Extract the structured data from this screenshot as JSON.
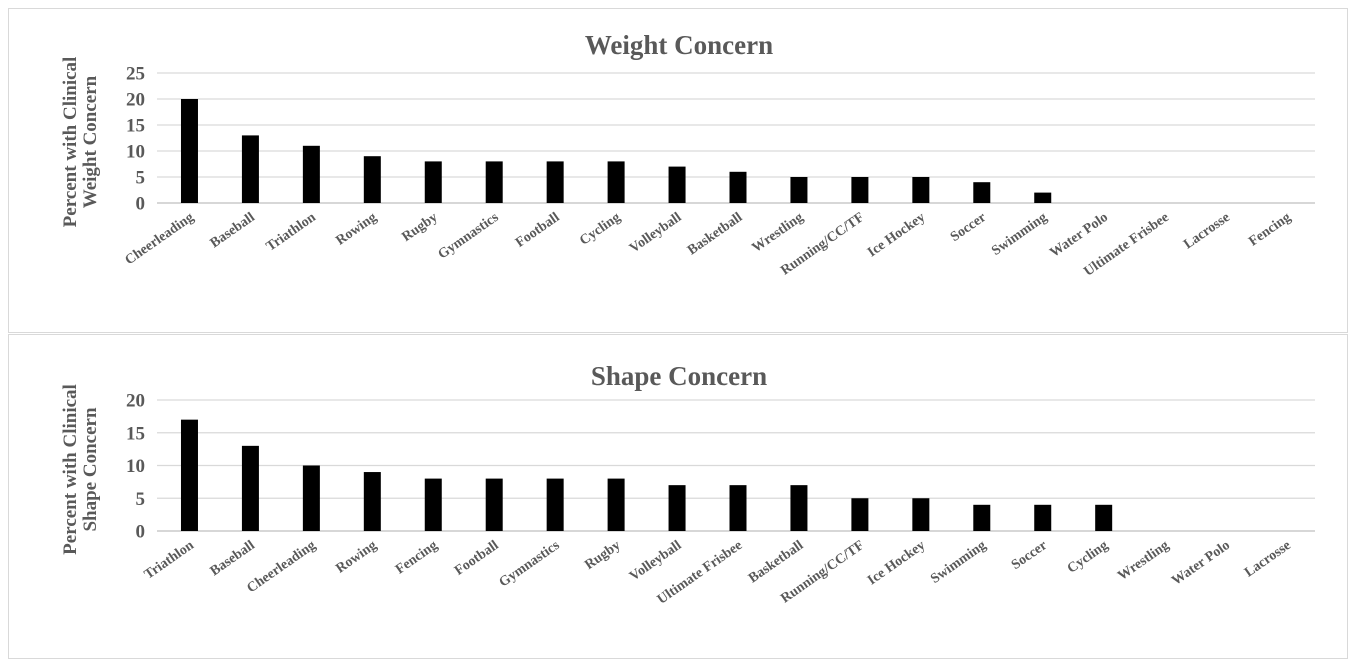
{
  "chart_data": [
    {
      "type": "bar",
      "title": "Weight Concern",
      "ylabel_lines": [
        "Percent with Clinical",
        "Weight Concern"
      ],
      "ylim": [
        0,
        25
      ],
      "yticks": [
        0,
        5,
        10,
        15,
        20,
        25
      ],
      "grid": true,
      "categories": [
        "Cheerleading",
        "Baseball",
        "Triathlon",
        "Rowing",
        "Rugby",
        "Gymnastics",
        "Football",
        "Cycling",
        "Volleyball",
        "Basketball",
        "Wrestling",
        "Running/CC/TF",
        "Ice Hockey",
        "Soccer",
        "Swimming",
        "Water Polo",
        "Ultimate Frisbee",
        "Lacrosse",
        "Fencing"
      ],
      "values": [
        20,
        13,
        11,
        9,
        8,
        8,
        8,
        8,
        7,
        6,
        5,
        5,
        5,
        4,
        2,
        0,
        0,
        0,
        0
      ],
      "bar_color": "#000000"
    },
    {
      "type": "bar",
      "title": "Shape Concern",
      "ylabel_lines": [
        "Percent with Clinical",
        "Shape Concern"
      ],
      "ylim": [
        0,
        20
      ],
      "yticks": [
        0,
        5,
        10,
        15,
        20
      ],
      "grid": true,
      "categories": [
        "Triathlon",
        "Baseball",
        "Cheerleading",
        "Rowing",
        "Fencing",
        "Football",
        "Gymnastics",
        "Rugby",
        "Volleyball",
        "Ultimate Frisbee",
        "Basketball",
        "Running/CC/TF",
        "Ice Hockey",
        "Swimming",
        "Soccer",
        "Cycling",
        "Wrestling",
        "Water Polo",
        "Lacrosse"
      ],
      "values": [
        17,
        13,
        10,
        9,
        8,
        8,
        8,
        8,
        7,
        7,
        7,
        5,
        5,
        4,
        4,
        4,
        0,
        0,
        0
      ],
      "bar_color": "#000000"
    }
  ]
}
